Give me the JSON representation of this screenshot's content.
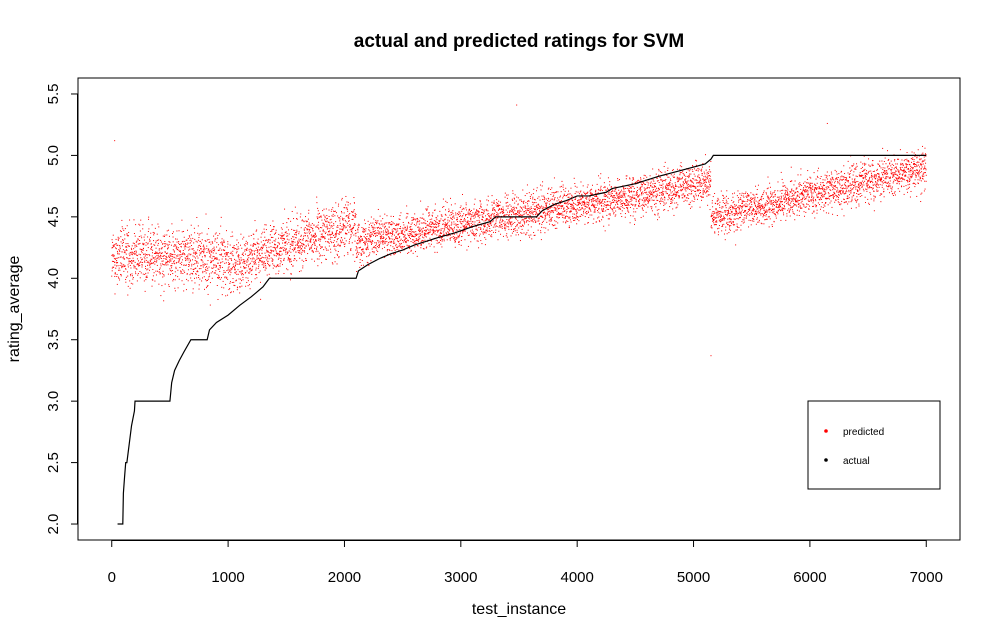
{
  "chart_data": {
    "type": "scatter",
    "title": "actual and predicted ratings for SVM",
    "xlabel": "test_instance",
    "ylabel": "rating_average",
    "xlim": [
      -290,
      7290
    ],
    "ylim": [
      1.87,
      5.63
    ],
    "x_ticks": [
      0,
      1000,
      2000,
      3000,
      4000,
      5000,
      6000,
      7000
    ],
    "x_tick_labels": [
      "0",
      "1000",
      "2000",
      "3000",
      "4000",
      "5000",
      "6000",
      "7000"
    ],
    "y_ticks": [
      2.0,
      2.5,
      3.0,
      3.5,
      4.0,
      4.5,
      5.0,
      5.5
    ],
    "y_tick_labels": [
      "2.0",
      "2.5",
      "3.0",
      "3.5",
      "4.0",
      "4.5",
      "5.0",
      "5.5"
    ],
    "grid": false,
    "legend_position": "bottom-right",
    "n_points": 7000,
    "series": [
      {
        "name": "actual",
        "color": "#000000",
        "description": "sorted actual rating, step curve",
        "x": [
          50,
          95,
          100,
          110,
          120,
          130,
          150,
          170,
          195,
          200,
          500,
          515,
          540,
          580,
          620,
          680,
          820,
          840,
          900,
          1000,
          1100,
          1200,
          1300,
          1355,
          2100,
          2120,
          2200,
          2300,
          2400,
          2500,
          2600,
          2700,
          2800,
          2950,
          3100,
          3250,
          3300,
          3650,
          3700,
          3800,
          3900,
          4000,
          4100,
          4250,
          4300,
          4500,
          4700,
          4900,
          5100,
          5150,
          5170,
          7000
        ],
        "y": [
          2.0,
          2.0,
          2.25,
          2.38,
          2.5,
          2.5,
          2.65,
          2.8,
          2.92,
          3.0,
          3.0,
          3.15,
          3.25,
          3.33,
          3.4,
          3.5,
          3.5,
          3.58,
          3.64,
          3.7,
          3.78,
          3.85,
          3.93,
          4.0,
          4.0,
          4.06,
          4.11,
          4.16,
          4.2,
          4.23,
          4.27,
          4.3,
          4.33,
          4.37,
          4.42,
          4.46,
          4.5,
          4.5,
          4.55,
          4.6,
          4.63,
          4.67,
          4.67,
          4.7,
          4.73,
          4.77,
          4.83,
          4.88,
          4.93,
          4.97,
          5.0,
          5.0
        ]
      },
      {
        "name": "predicted",
        "color": "#ff0000",
        "description": "SVM predicted rating per test instance (dense cloud, one point per instance)",
        "x_range": [
          0,
          7000
        ],
        "y_range": [
          3.37,
          5.41
        ],
        "segments": [
          {
            "x0": 0,
            "x1": 200,
            "y_center_start": 4.15,
            "y_center_end": 4.2,
            "spread": 0.38
          },
          {
            "x0": 200,
            "x1": 1000,
            "y_center_start": 4.2,
            "y_center_end": 4.15,
            "spread": 0.38
          },
          {
            "x0": 1000,
            "x1": 2100,
            "y_center_start": 4.1,
            "y_center_end": 4.45,
            "spread": 0.33
          },
          {
            "x0": 2100,
            "x1": 5150,
            "y_center_start": 4.3,
            "y_center_end": 4.78,
            "spread": 0.26
          },
          {
            "x0": 5170,
            "x1": 7000,
            "y_center_start": 4.5,
            "y_center_end": 4.9,
            "spread": 0.24
          }
        ],
        "notable_points": [
          {
            "x": 3480,
            "y": 5.41
          },
          {
            "x": 25,
            "y": 5.12
          },
          {
            "x": 6150,
            "y": 5.26
          },
          {
            "x": 5150,
            "y": 3.37
          }
        ]
      }
    ],
    "legend": [
      {
        "label": "predicted",
        "color": "#ff0000"
      },
      {
        "label": "actual",
        "color": "#000000"
      }
    ]
  }
}
